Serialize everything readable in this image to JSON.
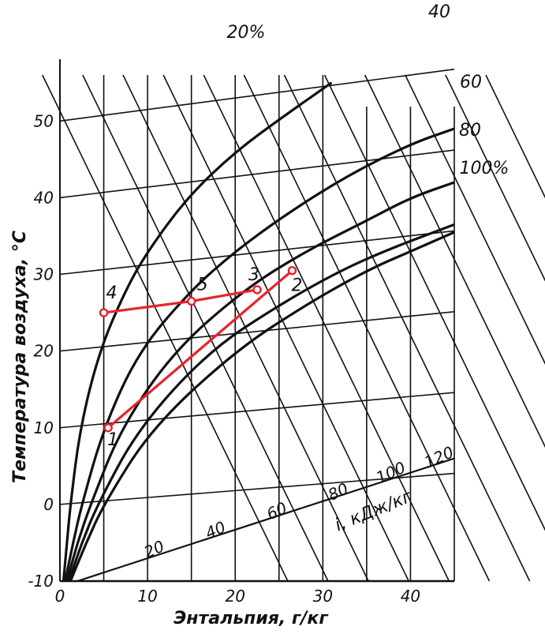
{
  "chart_data": {
    "type": "line",
    "title": "",
    "xlabel": "Энтальпия, г/кг",
    "ylabel": "Температура воздуха, °С",
    "xlim": [
      0,
      45
    ],
    "ylim": [
      -10,
      56
    ],
    "x_ticks": [
      "0",
      "10",
      "20",
      "30",
      "40"
    ],
    "y_ticks": [
      "-10",
      "0",
      "10",
      "20",
      "30",
      "40",
      "50"
    ],
    "humidity_curves": [
      {
        "label": "20%",
        "points": [
          [
            0.4,
            -10
          ],
          [
            0.8,
            -5
          ],
          [
            1.2,
            0
          ],
          [
            2.3,
            10
          ],
          [
            4.5,
            20
          ],
          [
            7.5,
            28
          ],
          [
            10,
            33
          ],
          [
            14.5,
            40
          ],
          [
            20,
            46
          ],
          [
            26,
            51
          ],
          [
            31,
            55
          ]
        ]
      },
      {
        "label": "40",
        "points": [
          [
            0.6,
            -10
          ],
          [
            1.5,
            -5
          ],
          [
            2.5,
            0
          ],
          [
            5,
            10
          ],
          [
            9,
            20
          ],
          [
            15,
            28
          ],
          [
            20,
            33
          ],
          [
            26,
            38
          ],
          [
            33,
            43
          ],
          [
            40,
            47
          ],
          [
            45,
            49
          ]
        ]
      },
      {
        "label": "60",
        "points": [
          [
            0.8,
            -10
          ],
          [
            2,
            -5
          ],
          [
            3.5,
            0
          ],
          [
            7,
            10
          ],
          [
            13,
            20
          ],
          [
            21,
            28
          ],
          [
            28,
            33
          ],
          [
            35,
            37
          ],
          [
            40,
            40
          ],
          [
            45,
            42
          ]
        ]
      },
      {
        "label": "80",
        "points": [
          [
            1,
            -10
          ],
          [
            2.5,
            -5
          ],
          [
            4.3,
            0
          ],
          [
            9,
            10
          ],
          [
            17,
            20
          ],
          [
            25,
            26
          ],
          [
            32,
            30.5
          ],
          [
            38,
            33.5
          ],
          [
            45,
            36.5
          ]
        ]
      },
      {
        "label": "100%",
        "points": [
          [
            1.2,
            -10
          ],
          [
            3,
            -5
          ],
          [
            5,
            0
          ],
          [
            10.5,
            10
          ],
          [
            20,
            20
          ],
          [
            28,
            26
          ],
          [
            35,
            30.5
          ],
          [
            40,
            33
          ],
          [
            45,
            35.5
          ]
        ]
      }
    ],
    "enthalpy_scale": {
      "label": "i, кДж/кг",
      "ticks": [
        "20",
        "40",
        "60",
        "80",
        "100",
        "120"
      ]
    },
    "process_points": [
      {
        "label": "1",
        "x": 5.5,
        "y": 10
      },
      {
        "label": "2",
        "x": 26.5,
        "y": 30.5
      },
      {
        "label": "3",
        "x": 22.5,
        "y": 28
      },
      {
        "label": "4",
        "x": 5,
        "y": 25
      },
      {
        "label": "5",
        "x": 15,
        "y": 26.5
      }
    ],
    "process_lines": [
      {
        "from": "1",
        "to": "2"
      },
      {
        "from": "4",
        "to": "5"
      },
      {
        "from": "5",
        "to": "3"
      }
    ],
    "colors": {
      "curves": "#111111",
      "process": "#e8232b"
    },
    "grid": true
  }
}
